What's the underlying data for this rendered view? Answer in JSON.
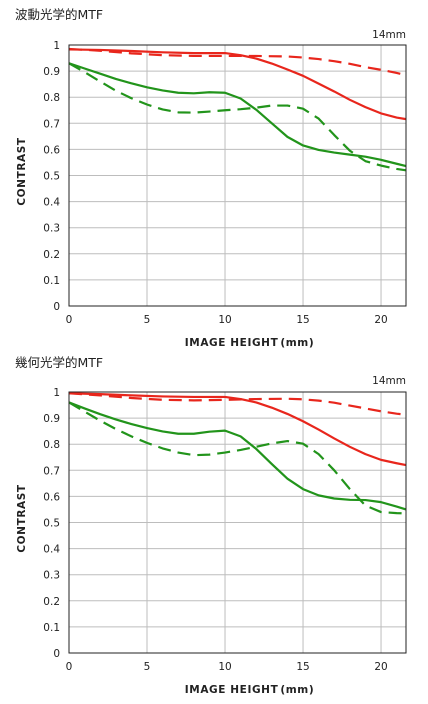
{
  "chart_data": [
    {
      "type": "line",
      "title": "波動光学的MTF",
      "focal_label": "14mm",
      "xlabel": "IMAGE HEIGHT",
      "xlabel_unit": "(mm)",
      "ylabel": "CONTRAST",
      "xlim": [
        0,
        21.6
      ],
      "ylim": [
        0,
        1
      ],
      "xticks": [
        0,
        5,
        10,
        15,
        20
      ],
      "yticks": [
        0,
        0.1,
        0.2,
        0.3,
        0.4,
        0.5,
        0.6,
        0.7,
        0.8,
        0.9,
        1
      ],
      "grid": true,
      "series": [
        {
          "color": "#e8261c",
          "dash": false,
          "x": [
            0,
            2,
            4,
            6,
            8,
            10,
            11,
            12,
            13,
            14,
            15,
            16,
            17,
            18,
            19,
            20,
            21,
            21.6
          ],
          "y": [
            0.983,
            0.981,
            0.977,
            0.972,
            0.969,
            0.969,
            0.961,
            0.948,
            0.929,
            0.906,
            0.882,
            0.852,
            0.822,
            0.79,
            0.762,
            0.738,
            0.722,
            0.716
          ]
        },
        {
          "color": "#e8261c",
          "dash": true,
          "x": [
            0,
            2,
            4,
            6,
            8,
            10,
            12,
            14,
            15,
            16,
            17,
            18,
            19,
            20,
            21,
            21.6
          ],
          "y": [
            0.985,
            0.978,
            0.968,
            0.961,
            0.958,
            0.958,
            0.958,
            0.956,
            0.952,
            0.946,
            0.938,
            0.928,
            0.915,
            0.905,
            0.893,
            0.884
          ]
        },
        {
          "color": "#22941b",
          "dash": false,
          "x": [
            0,
            1,
            2,
            3,
            4,
            5,
            6,
            7,
            8,
            9,
            10,
            11,
            12,
            13,
            14,
            15,
            16,
            17,
            18,
            19,
            20,
            21,
            21.6
          ],
          "y": [
            0.93,
            0.91,
            0.89,
            0.87,
            0.853,
            0.838,
            0.826,
            0.817,
            0.815,
            0.819,
            0.817,
            0.795,
            0.752,
            0.7,
            0.648,
            0.615,
            0.598,
            0.588,
            0.58,
            0.572,
            0.56,
            0.545,
            0.536
          ]
        },
        {
          "color": "#22941b",
          "dash": true,
          "x": [
            0,
            1,
            2,
            3,
            4,
            5,
            6,
            7,
            8,
            9,
            10,
            11,
            12,
            13,
            14,
            15,
            16,
            17,
            18,
            19,
            20,
            21,
            21.6
          ],
          "y": [
            0.93,
            0.896,
            0.86,
            0.825,
            0.796,
            0.772,
            0.753,
            0.742,
            0.741,
            0.745,
            0.75,
            0.754,
            0.76,
            0.768,
            0.768,
            0.756,
            0.718,
            0.655,
            0.595,
            0.555,
            0.538,
            0.525,
            0.52
          ]
        }
      ]
    },
    {
      "type": "line",
      "title": "幾何光学的MTF",
      "focal_label": "14mm",
      "xlabel": "IMAGE HEIGHT",
      "xlabel_unit": "(mm)",
      "ylabel": "CONTRAST",
      "xlim": [
        0,
        21.6
      ],
      "ylim": [
        0,
        1
      ],
      "xticks": [
        0,
        5,
        10,
        15,
        20
      ],
      "yticks": [
        0,
        0.1,
        0.2,
        0.3,
        0.4,
        0.5,
        0.6,
        0.7,
        0.8,
        0.9,
        1
      ],
      "grid": true,
      "series": [
        {
          "color": "#e8261c",
          "dash": false,
          "x": [
            0,
            2,
            4,
            6,
            8,
            10,
            11,
            12,
            13,
            14,
            15,
            16,
            17,
            18,
            19,
            20,
            21,
            21.6
          ],
          "y": [
            0.995,
            0.992,
            0.987,
            0.983,
            0.981,
            0.981,
            0.973,
            0.96,
            0.94,
            0.916,
            0.888,
            0.856,
            0.822,
            0.79,
            0.762,
            0.74,
            0.727,
            0.72
          ]
        },
        {
          "color": "#e8261c",
          "dash": true,
          "x": [
            0,
            2,
            4,
            6,
            8,
            10,
            12,
            14,
            15,
            16,
            17,
            18,
            19,
            20,
            21,
            21.6
          ],
          "y": [
            0.995,
            0.987,
            0.977,
            0.97,
            0.968,
            0.97,
            0.973,
            0.974,
            0.972,
            0.967,
            0.959,
            0.948,
            0.937,
            0.926,
            0.917,
            0.913
          ]
        },
        {
          "color": "#22941b",
          "dash": false,
          "x": [
            0,
            1,
            2,
            3,
            4,
            5,
            6,
            7,
            8,
            9,
            10,
            11,
            12,
            13,
            14,
            15,
            16,
            17,
            18,
            19,
            20,
            21,
            21.6
          ],
          "y": [
            0.96,
            0.937,
            0.915,
            0.895,
            0.877,
            0.862,
            0.849,
            0.84,
            0.84,
            0.848,
            0.852,
            0.83,
            0.782,
            0.724,
            0.668,
            0.628,
            0.604,
            0.592,
            0.587,
            0.586,
            0.578,
            0.561,
            0.55
          ]
        },
        {
          "color": "#22941b",
          "dash": true,
          "x": [
            0,
            1,
            2,
            3,
            4,
            5,
            6,
            7,
            8,
            9,
            10,
            11,
            12,
            13,
            14,
            15,
            16,
            17,
            18,
            19,
            20,
            21,
            21.6
          ],
          "y": [
            0.96,
            0.925,
            0.89,
            0.858,
            0.83,
            0.805,
            0.784,
            0.768,
            0.758,
            0.76,
            0.768,
            0.778,
            0.79,
            0.803,
            0.812,
            0.802,
            0.762,
            0.7,
            0.628,
            0.565,
            0.54,
            0.536,
            0.535
          ]
        }
      ]
    }
  ]
}
